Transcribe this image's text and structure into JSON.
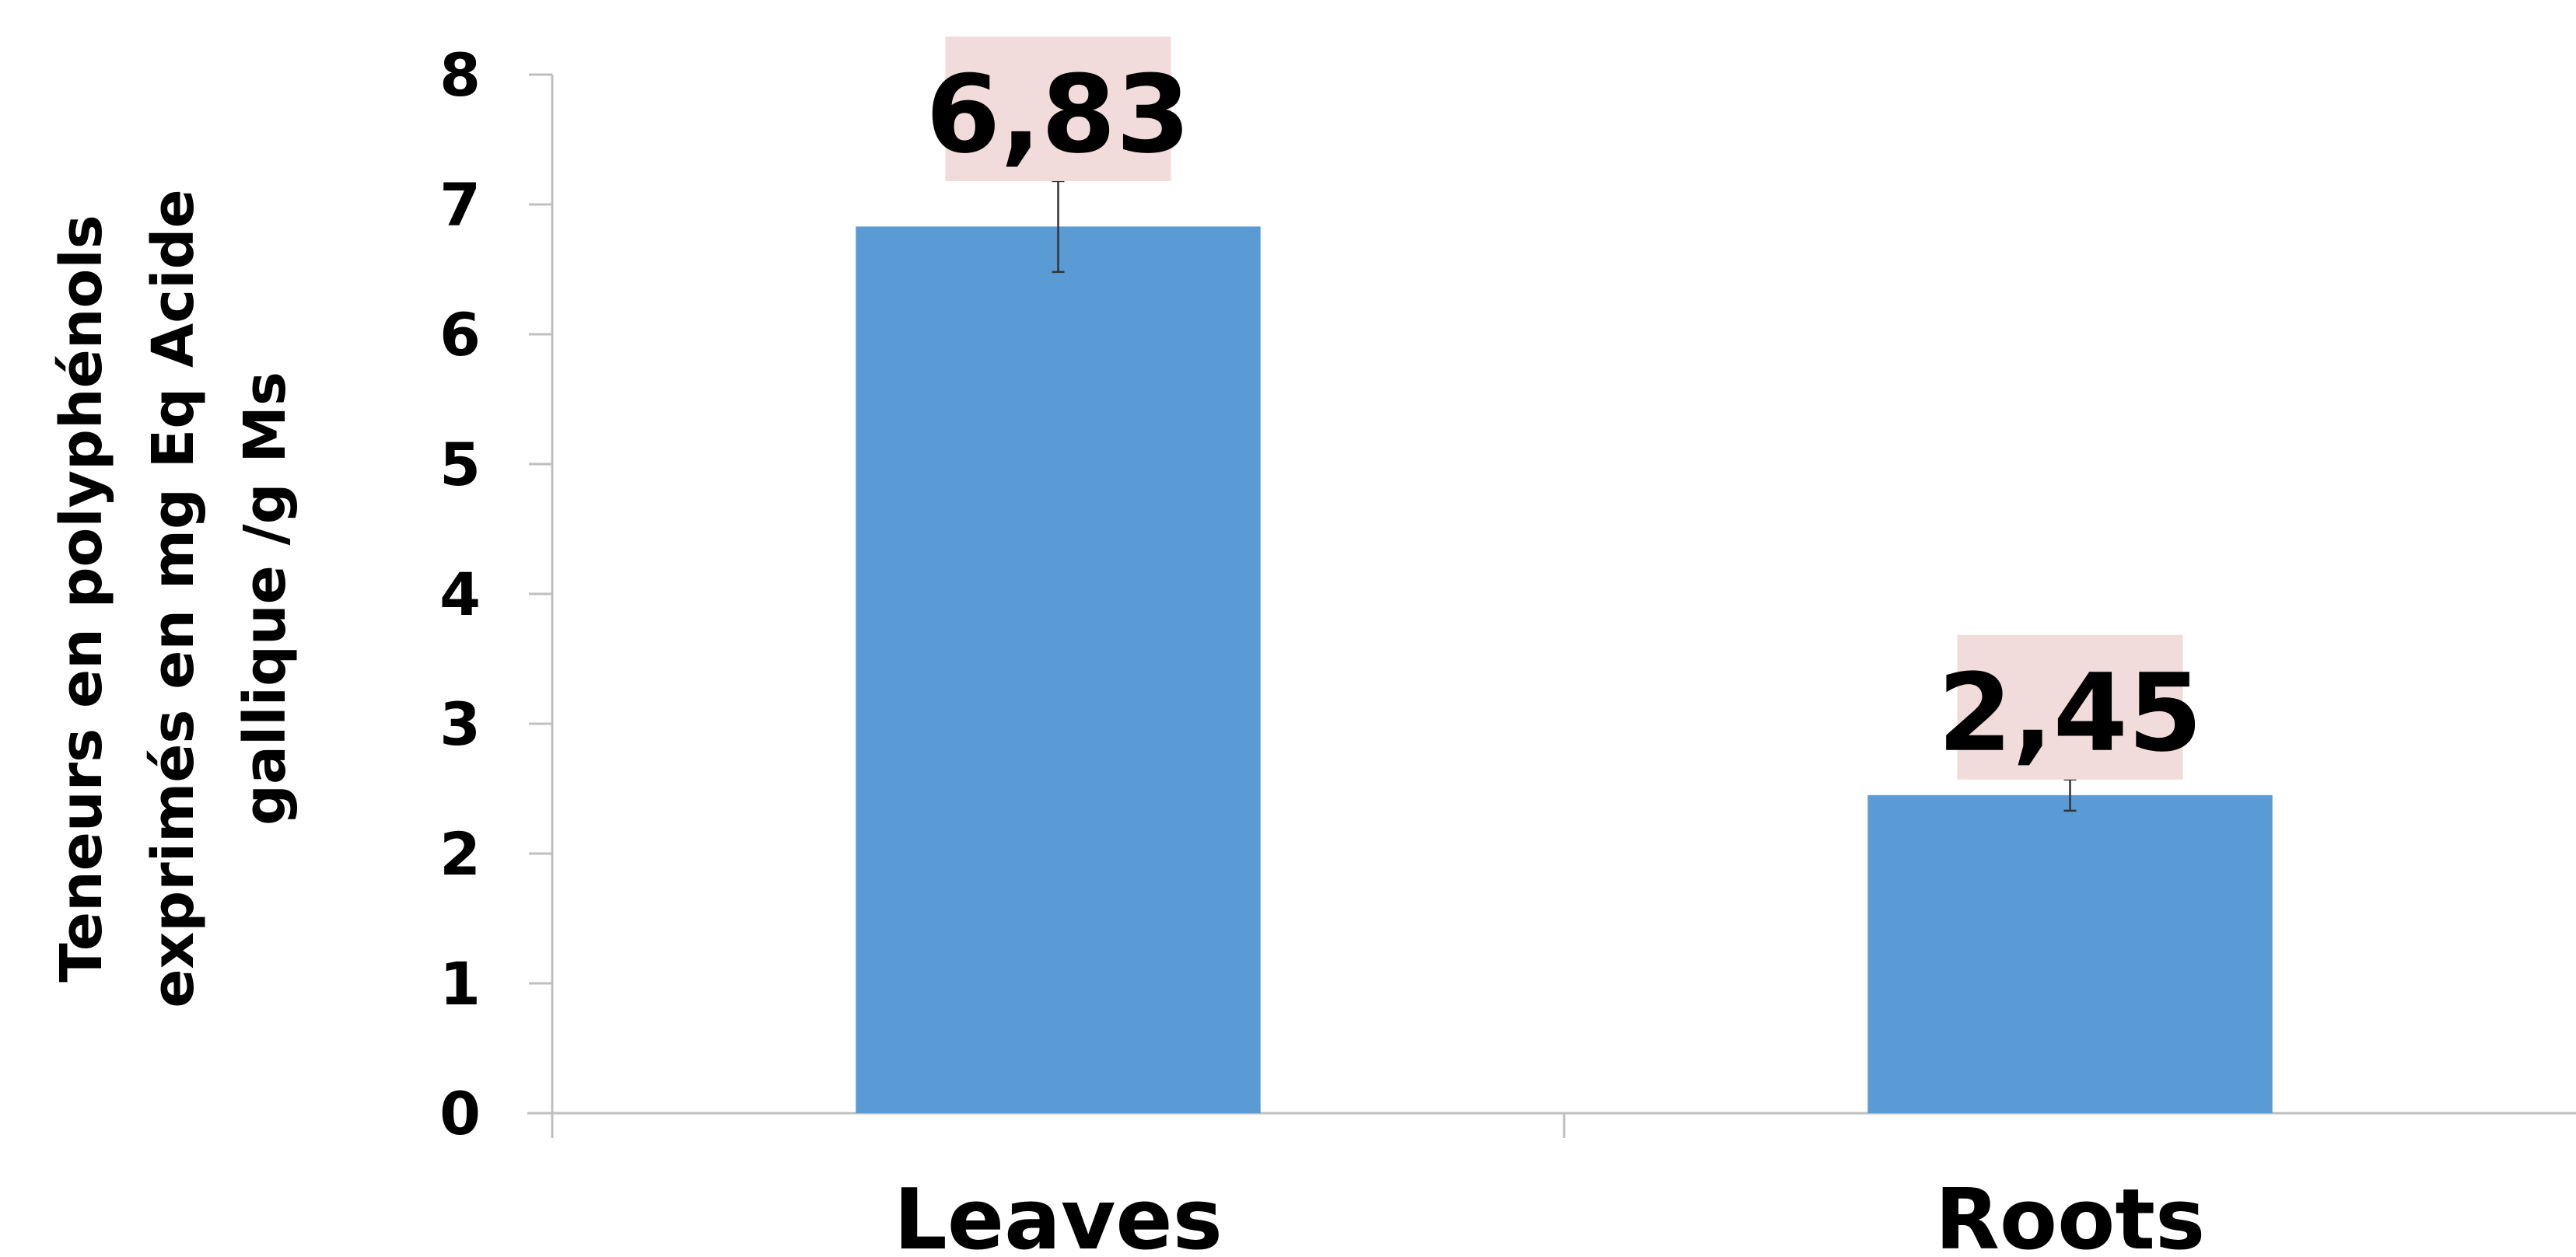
{
  "chart_data": {
    "type": "bar",
    "categories": [
      "Leaves",
      "Roots"
    ],
    "values": [
      6.83,
      2.45
    ],
    "errors": [
      0.35,
      0.12
    ],
    "data_labels": [
      "6,83",
      "2,45"
    ],
    "title": "",
    "xlabel": "",
    "ylabel_lines": [
      "Teneurs en polyphénols",
      "exprimés en mg Eq Acide",
      "gallique /g Ms"
    ],
    "ylim": [
      0,
      8
    ],
    "yticks": [
      "0",
      "1",
      "2",
      "3",
      "4",
      "5",
      "6",
      "7",
      "8"
    ],
    "grid": false,
    "legend": "none",
    "colors": {
      "bar": "#5b9bd5",
      "label_background": "#f2dcdb",
      "axis": "#bfbfbf",
      "error_bar": "#333333"
    }
  }
}
